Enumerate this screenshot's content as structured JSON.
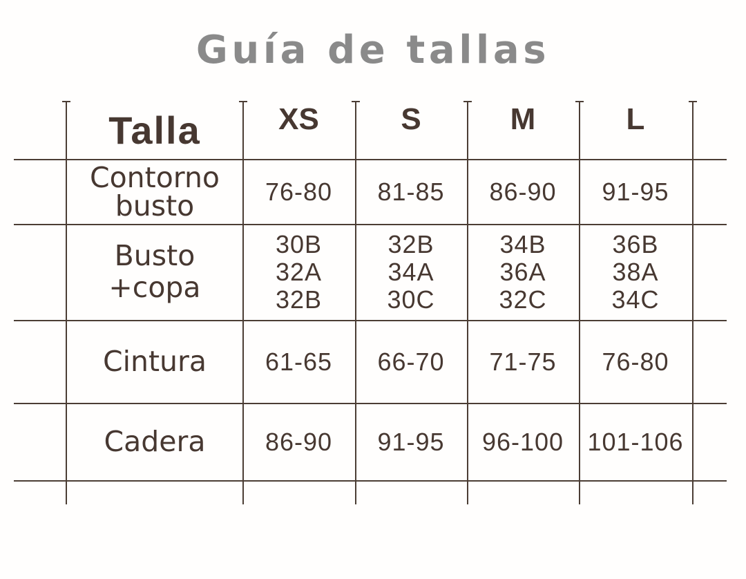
{
  "page_title": "Guía de tallas",
  "colors": {
    "text_brown": "#473831",
    "grid_line": "#4b3d34",
    "title_gray": "#8a8a8a",
    "background": "#fffefd"
  },
  "chart_data": {
    "type": "table",
    "title": "Guía de tallas",
    "header": {
      "corner": "Talla",
      "sizes": [
        "XS",
        "S",
        "M",
        "L"
      ]
    },
    "rows": [
      {
        "label": "Contorno busto",
        "label_lines": [
          "Contorno",
          "busto"
        ],
        "cells": [
          [
            "76-80"
          ],
          [
            "81-85"
          ],
          [
            "86-90"
          ],
          [
            "91-95"
          ]
        ]
      },
      {
        "label": "Busto +copa",
        "label_lines": [
          "Busto",
          "+copa"
        ],
        "cells": [
          [
            "30B",
            "32A",
            "32B"
          ],
          [
            "32B",
            "34A",
            "30C"
          ],
          [
            "34B",
            "36A",
            "32C"
          ],
          [
            "36B",
            "38A",
            "34C"
          ]
        ]
      },
      {
        "label": "Cintura",
        "label_lines": [
          "Cintura"
        ],
        "cells": [
          [
            "61-65"
          ],
          [
            "66-70"
          ],
          [
            "71-75"
          ],
          [
            "76-80"
          ]
        ]
      },
      {
        "label": "Cadera",
        "label_lines": [
          "Cadera"
        ],
        "cells": [
          [
            "86-90"
          ],
          [
            "91-95"
          ],
          [
            "96-100"
          ],
          [
            "101-106"
          ]
        ]
      }
    ],
    "layout": {
      "grid": "on",
      "columns_count": 5,
      "rows_count": 5
    }
  }
}
